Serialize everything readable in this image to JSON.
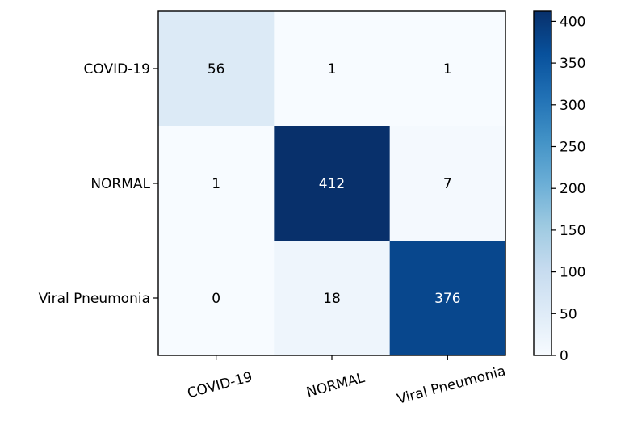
{
  "chart_data": {
    "type": "heatmap",
    "title": "",
    "xlabel": "",
    "ylabel": "",
    "rows": [
      "COVID-19",
      "NORMAL",
      "Viral Pneumonia"
    ],
    "columns": [
      "COVID-19",
      "NORMAL",
      "Viral Pneumonia"
    ],
    "values": [
      [
        56,
        1,
        1
      ],
      [
        1,
        412,
        7
      ],
      [
        0,
        18,
        376
      ]
    ],
    "colormap": "Blues",
    "colormap_stops": [
      "#f7fbff",
      "#deebf7",
      "#c6dbef",
      "#9ecae1",
      "#6baed6",
      "#4292c6",
      "#2171b5",
      "#08519c",
      "#08306b"
    ],
    "colorbar": {
      "range": [
        0,
        412
      ],
      "ticks": [
        0,
        50,
        100,
        150,
        200,
        250,
        300,
        350,
        400
      ]
    },
    "text_color_dark": "#000000",
    "text_color_light": "#ffffff"
  }
}
